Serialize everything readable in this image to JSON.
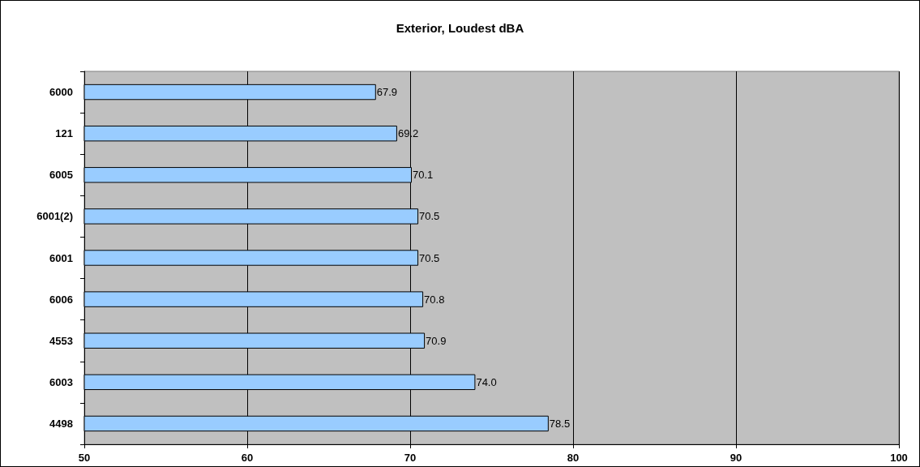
{
  "chart_data": {
    "type": "bar",
    "title": "Exterior, Loudest dBA",
    "orientation": "horizontal",
    "categories": [
      "6000",
      "121",
      "6005",
      "6001(2)",
      "6001",
      "6006",
      "4553",
      "6003",
      "4498"
    ],
    "values": [
      67.9,
      69.2,
      70.1,
      70.5,
      70.5,
      70.8,
      70.9,
      74.0,
      78.5
    ],
    "value_labels": [
      "67.9",
      "69.2",
      "70.1",
      "70.5",
      "70.5",
      "70.8",
      "70.9",
      "74.0",
      "78.5"
    ],
    "color": "#99ccff",
    "xlim": [
      50,
      100
    ],
    "xticks": [
      50,
      60,
      70,
      80,
      90,
      100
    ],
    "grid": "x"
  }
}
